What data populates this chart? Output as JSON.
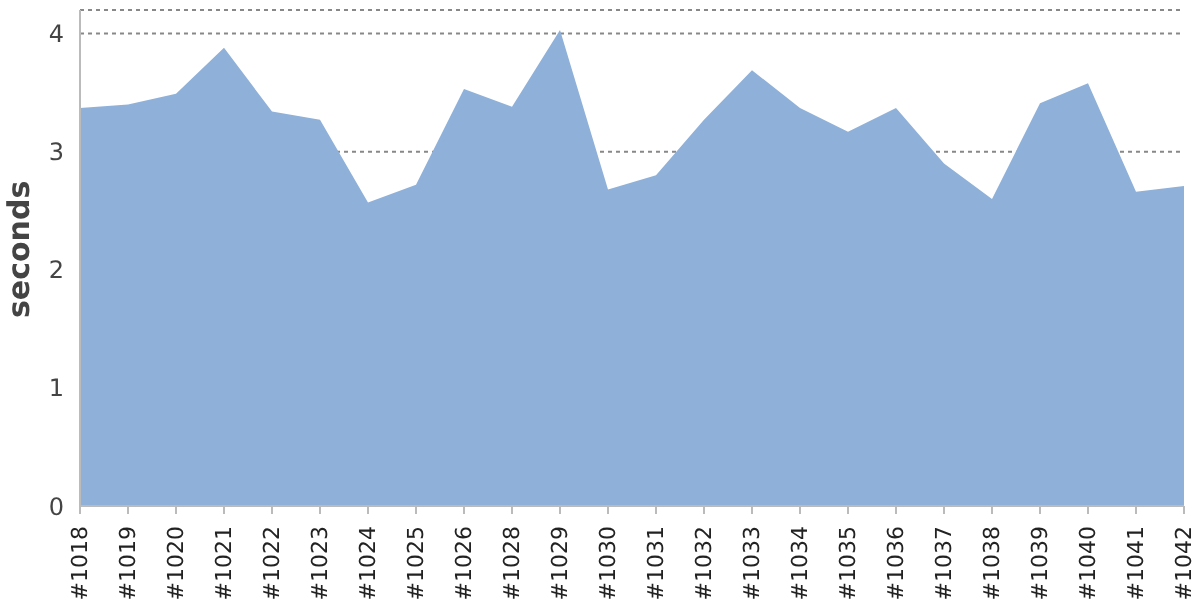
{
  "chart_data": {
    "type": "area",
    "ylabel": "seconds",
    "categories": [
      "#1018",
      "#1019",
      "#1020",
      "#1021",
      "#1022",
      "#1023",
      "#1024",
      "#1025",
      "#1026",
      "#1028",
      "#1029",
      "#1030",
      "#1031",
      "#1032",
      "#1033",
      "#1034",
      "#1035",
      "#1036",
      "#1037",
      "#1038",
      "#1039",
      "#1040",
      "#1041",
      "#1042"
    ],
    "series": [
      {
        "color": "#8eb0d9",
        "values": [
          3.37,
          3.4,
          3.49,
          3.88,
          3.34,
          3.27,
          2.57,
          2.72,
          3.53,
          3.38,
          4.03,
          2.68,
          2.8,
          3.27,
          3.69,
          3.37,
          3.17,
          3.37,
          2.9,
          2.6,
          3.41,
          3.58,
          2.66,
          2.71
        ]
      }
    ],
    "ylim": [
      0,
      4.2
    ],
    "yticks": [
      0,
      1,
      2,
      3,
      4
    ],
    "grid": "y",
    "legend": false
  }
}
